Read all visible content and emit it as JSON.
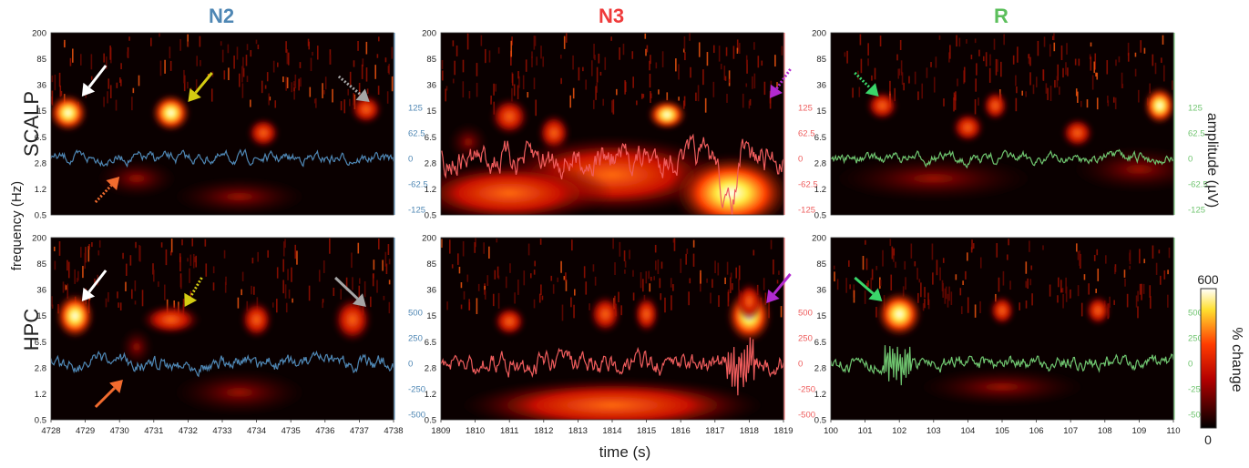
{
  "figure": {
    "stage_titles": [
      "N2",
      "N3",
      "R"
    ],
    "stage_colors": [
      "#4f87b4",
      "#ef3b3b",
      "#5cbf5c"
    ],
    "row_labels": [
      "SCALP",
      "HPC"
    ],
    "y_axis_label": "frequency (Hz)",
    "x_axis_label": "time (s)",
    "amplitude_axis_label": "amplitude (µV)",
    "colorbar_label": "% change",
    "colorbar_ticks": [
      "600",
      "0"
    ]
  },
  "chart_data": [
    {
      "type": "heatmap",
      "panel": "N2-SCALP",
      "x": [
        4728,
        4738
      ],
      "xticks": [],
      "ylabel_freq_ticks": [
        "200",
        "85",
        "36",
        "15",
        "6.5",
        "2.8",
        "1.2",
        "0.5"
      ],
      "amplitude_ticks": [
        "125",
        "62.5",
        "0",
        "-62.5",
        "-125"
      ],
      "trace_color": "#4f87b4",
      "arrows": [
        {
          "color": "#ffffff",
          "style": "solid"
        },
        {
          "color": "#d4cc12",
          "style": "solid"
        },
        {
          "color": "#a6a6a6",
          "style": "dotted"
        },
        {
          "color": "#f26b2e",
          "style": "dotted"
        }
      ]
    },
    {
      "type": "heatmap",
      "panel": "N3-SCALP",
      "x": [
        1809,
        1819
      ],
      "xticks": [],
      "ylabel_freq_ticks": [
        "200",
        "85",
        "36",
        "15",
        "6.5",
        "2.8",
        "1.2",
        "0.5"
      ],
      "amplitude_ticks": [
        "125",
        "62.5",
        "0",
        "-62.5",
        "-125"
      ],
      "trace_color": "#ee5c5c",
      "arrows": [
        {
          "color": "#b22ad0",
          "style": "dotted"
        }
      ]
    },
    {
      "type": "heatmap",
      "panel": "R-SCALP",
      "x": [
        100,
        110
      ],
      "xticks": [],
      "ylabel_freq_ticks": [
        "200",
        "85",
        "36",
        "15",
        "6.5",
        "2.8",
        "1.2",
        "0.5"
      ],
      "amplitude_ticks": [
        "125",
        "62.5",
        "0",
        "-62.5",
        "-125"
      ],
      "trace_color": "#6fc46f",
      "arrows": [
        {
          "color": "#3ad66a",
          "style": "dotted"
        }
      ]
    },
    {
      "type": "heatmap",
      "panel": "N2-HPC",
      "x": [
        4728,
        4738
      ],
      "xticks": [
        "4728",
        "4729",
        "4730",
        "4731",
        "4732",
        "4733",
        "4734",
        "4735",
        "4736",
        "4737",
        "4738"
      ],
      "ylabel_freq_ticks": [
        "200",
        "85",
        "36",
        "15",
        "6.5",
        "2.8",
        "1.2",
        "0.5"
      ],
      "amplitude_ticks": [
        "500",
        "250",
        "0",
        "-250",
        "-500"
      ],
      "trace_color": "#4f87b4",
      "arrows": [
        {
          "color": "#ffffff",
          "style": "solid"
        },
        {
          "color": "#d4cc12",
          "style": "dotted"
        },
        {
          "color": "#a6a6a6",
          "style": "solid"
        },
        {
          "color": "#f26b2e",
          "style": "solid"
        }
      ]
    },
    {
      "type": "heatmap",
      "panel": "N3-HPC",
      "x": [
        1809,
        1819
      ],
      "xticks": [
        "1809",
        "1810",
        "1811",
        "1812",
        "1813",
        "1814",
        "1815",
        "1816",
        "1817",
        "1818",
        "1819"
      ],
      "ylabel_freq_ticks": [
        "200",
        "85",
        "36",
        "15",
        "6.5",
        "2.8",
        "1.2",
        "0.5"
      ],
      "amplitude_ticks": [
        "500",
        "250",
        "0",
        "-250",
        "-500"
      ],
      "trace_color": "#ee5c5c",
      "arrows": [
        {
          "color": "#b22ad0",
          "style": "solid"
        }
      ]
    },
    {
      "type": "heatmap",
      "panel": "R-HPC",
      "x": [
        100,
        110
      ],
      "xticks": [
        "100",
        "101",
        "102",
        "103",
        "104",
        "105",
        "106",
        "107",
        "108",
        "109",
        "110"
      ],
      "ylabel_freq_ticks": [
        "200",
        "85",
        "36",
        "15",
        "6.5",
        "2.8",
        "1.2",
        "0.5"
      ],
      "amplitude_ticks": [
        "500",
        "250",
        "0",
        "-250",
        "-500"
      ],
      "trace_color": "#6fc46f",
      "arrows": [
        {
          "color": "#3ad66a",
          "style": "solid"
        }
      ]
    }
  ]
}
